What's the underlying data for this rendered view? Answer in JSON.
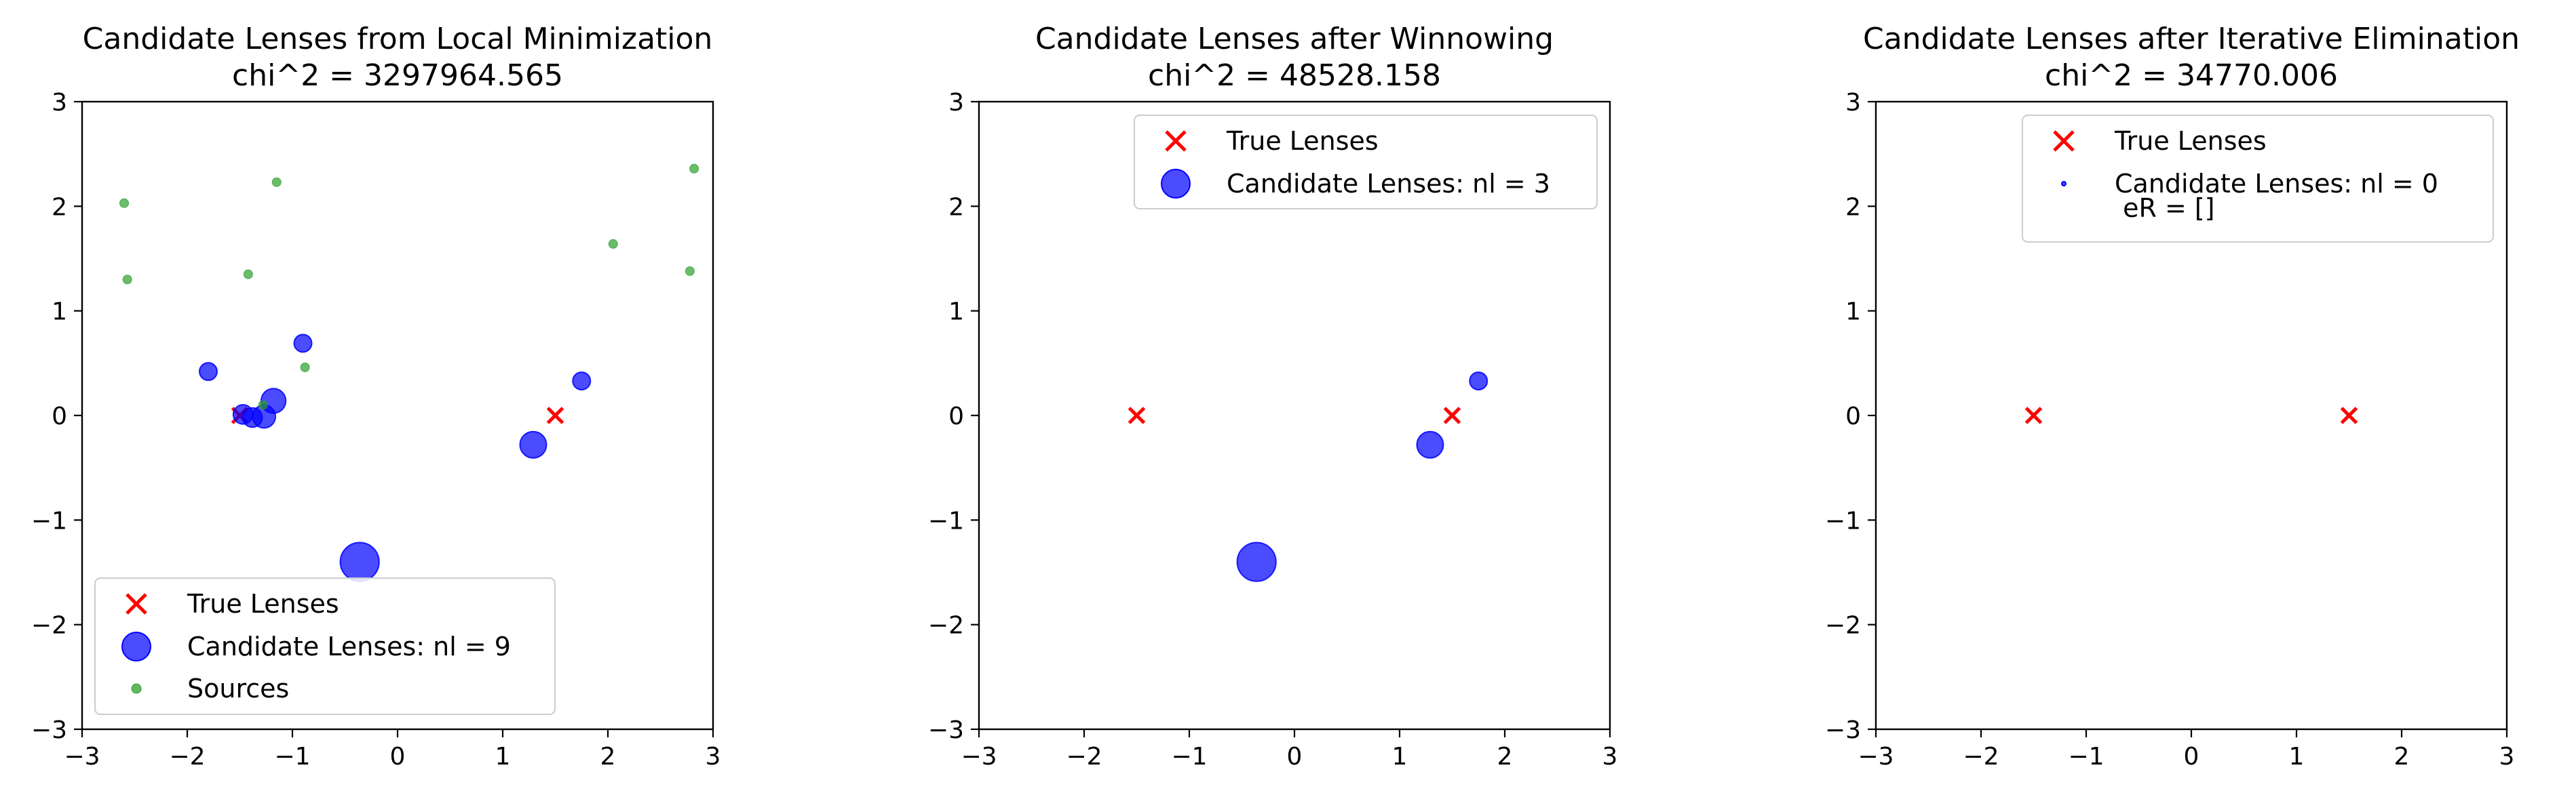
{
  "chart_data": [
    {
      "type": "scatter",
      "title": "Candidate Lenses from Local Minimization",
      "subtitle": "chi^2 = 3297964.565",
      "xlim": [
        -3,
        3
      ],
      "ylim": [
        -3,
        3
      ],
      "xticks": [
        "−3",
        "−2",
        "−1",
        "0",
        "1",
        "2",
        "3"
      ],
      "yticks": [
        "−3",
        "−2",
        "−1",
        "0",
        "1",
        "2",
        "3"
      ],
      "legend_position": "lower-left",
      "legend": [
        "True Lenses",
        "Candidate Lenses: nl = 9",
        "Sources"
      ],
      "series": [
        {
          "name": "True Lenses",
          "marker": "x",
          "color": "#ff0000",
          "points": [
            [
              -1.5,
              0.0
            ],
            [
              1.5,
              0.0
            ]
          ]
        },
        {
          "name": "Candidate Lenses: nl = 9",
          "marker": "circle",
          "color": "#0000ff",
          "points": [
            {
              "x": -1.8,
              "y": 0.42,
              "size": 1.0
            },
            {
              "x": -0.9,
              "y": 0.69,
              "size": 1.0
            },
            {
              "x": -1.18,
              "y": 0.14,
              "size": 1.4
            },
            {
              "x": -1.47,
              "y": 0.01,
              "size": 1.1
            },
            {
              "x": -1.38,
              "y": -0.02,
              "size": 1.1
            },
            {
              "x": -1.27,
              "y": -0.01,
              "size": 1.3
            },
            {
              "x": 1.29,
              "y": -0.28,
              "size": 1.5
            },
            {
              "x": 1.75,
              "y": 0.33,
              "size": 1.0
            },
            {
              "x": -0.36,
              "y": -1.4,
              "size": 2.2
            }
          ]
        },
        {
          "name": "Sources",
          "marker": "circle",
          "color": "#2ca02c",
          "points": [
            [
              -2.6,
              2.03
            ],
            [
              -2.57,
              1.3
            ],
            [
              -1.15,
              2.23
            ],
            [
              -1.42,
              1.35
            ],
            [
              -0.88,
              0.46
            ],
            [
              -1.28,
              0.1
            ],
            [
              2.05,
              1.64
            ],
            [
              2.82,
              2.36
            ],
            [
              2.78,
              1.38
            ]
          ]
        }
      ]
    },
    {
      "type": "scatter",
      "title": "Candidate Lenses after Winnowing",
      "subtitle": "chi^2 = 48528.158",
      "xlim": [
        -3,
        3
      ],
      "ylim": [
        -3,
        3
      ],
      "xticks": [
        "−3",
        "−2",
        "−1",
        "0",
        "1",
        "2",
        "3"
      ],
      "yticks": [
        "−3",
        "−2",
        "−1",
        "0",
        "1",
        "2",
        "3"
      ],
      "legend_position": "top-right",
      "legend": [
        "True Lenses",
        "Candidate Lenses: nl = 3"
      ],
      "series": [
        {
          "name": "True Lenses",
          "marker": "x",
          "color": "#ff0000",
          "points": [
            [
              -1.5,
              0.0
            ],
            [
              1.5,
              0.0
            ]
          ]
        },
        {
          "name": "Candidate Lenses: nl = 3",
          "marker": "circle",
          "color": "#0000ff",
          "points": [
            {
              "x": 1.75,
              "y": 0.33,
              "size": 1.0
            },
            {
              "x": 1.29,
              "y": -0.28,
              "size": 1.5
            },
            {
              "x": -0.36,
              "y": -1.4,
              "size": 2.2
            }
          ]
        }
      ]
    },
    {
      "type": "scatter",
      "title": "Candidate Lenses after Iterative Elimination",
      "subtitle": "chi^2 = 34770.006",
      "xlim": [
        -3,
        3
      ],
      "ylim": [
        -3,
        3
      ],
      "xticks": [
        "−3",
        "−2",
        "−1",
        "0",
        "1",
        "2",
        "3"
      ],
      "yticks": [
        "−3",
        "−2",
        "−1",
        "0",
        "1",
        "2",
        "3"
      ],
      "legend_position": "top-right",
      "legend": [
        "True Lenses",
        "Candidate Lenses: nl = 0",
        " eR = []"
      ],
      "series": [
        {
          "name": "True Lenses",
          "marker": "x",
          "color": "#ff0000",
          "points": [
            [
              -1.5,
              0.0
            ],
            [
              1.5,
              0.0
            ]
          ]
        },
        {
          "name": "Candidate Lenses: nl = 0",
          "marker": "circle",
          "color": "#0000ff",
          "points": []
        }
      ]
    }
  ]
}
